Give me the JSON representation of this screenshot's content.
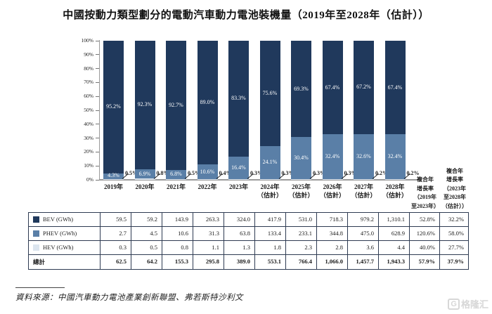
{
  "title": "中國按動力類型劃分的電動汽車動力電池裝機量（2019年至2028年（估計））",
  "chart_data": {
    "type": "stacked_bar_100pct",
    "title": "中國按動力類型劃分的電動汽車動力電池裝機量（2019年至2028年（估計））",
    "ylim": [
      0,
      100
    ],
    "grid": false,
    "y_ticks": [
      "100%",
      "90%",
      "80%",
      "70%",
      "60%",
      "50%",
      "40%",
      "30%",
      "20%",
      "10%",
      "0%"
    ],
    "categories": [
      "2019年",
      "2020年",
      "2021年",
      "2022年",
      "2023年",
      "2024年",
      "2025年",
      "2026年",
      "2027年",
      "2028年"
    ],
    "category_notes": [
      "",
      "",
      "",
      "",
      "",
      "（估計）",
      "（估計）",
      "（估計）",
      "（估計）",
      "（估計）"
    ],
    "series": [
      {
        "name": "BEV",
        "color": "#20395C",
        "values": [
          95.2,
          92.3,
          92.7,
          89.0,
          83.3,
          75.6,
          69.3,
          67.4,
          67.2,
          67.4
        ],
        "labels": [
          "95.2%",
          "92.3%",
          "92.7%",
          "89.0%",
          "83.3%",
          "75.6%",
          "69.3%",
          "67.4%",
          "67.2%",
          "67.4%"
        ]
      },
      {
        "name": "PHEV",
        "color": "#5A7FA7",
        "values": [
          4.3,
          6.9,
          6.8,
          10.6,
          16.4,
          24.1,
          30.4,
          32.4,
          32.6,
          32.4
        ],
        "labels": [
          "4.3%",
          "6.9%",
          "6.8%",
          "10.6%",
          "16.4%",
          "24.1%",
          "30.4%",
          "32.4%",
          "32.6%",
          "32.4%"
        ]
      },
      {
        "name": "HEV",
        "color": "#DCE5EF",
        "values": [
          0.5,
          0.8,
          0.5,
          0.4,
          0.3,
          0.3,
          0.3,
          0.3,
          0.2,
          0.2
        ],
        "labels": [
          "0.5%",
          "0.8%",
          "0.5%",
          "0.4%",
          "0.3%",
          "0.3%",
          "0.3%",
          "0.3%",
          "0.2%",
          "0.2%"
        ]
      }
    ]
  },
  "table": {
    "cagr_headers": [
      "複合年\n增長率\n（2019年\n至2023年）",
      "複合年\n增長率\n（2023年\n至2028年\n（估計））"
    ],
    "rows": [
      {
        "label": "BEV (GWh)",
        "swatch": "#20395C",
        "bold": false,
        "values": [
          "59.5",
          "59.2",
          "143.9",
          "263.3",
          "324.0",
          "417.9",
          "531.0",
          "718.3",
          "979.2",
          "1,310.1",
          "52.8%",
          "32.2%"
        ]
      },
      {
        "label": "PHEV (GWh)",
        "swatch": "#5A7FA7",
        "bold": false,
        "values": [
          "2.7",
          "4.5",
          "10.6",
          "31.3",
          "63.8",
          "133.4",
          "233.1",
          "344.8",
          "475.0",
          "628.9",
          "120.6%",
          "58.0%"
        ]
      },
      {
        "label": "HEV (GWh)",
        "swatch": "#DCE5EF",
        "bold": false,
        "values": [
          "0.3",
          "0.5",
          "0.8",
          "1.1",
          "1.3",
          "1.8",
          "2.3",
          "2.8",
          "3.6",
          "4.4",
          "40.0%",
          "27.7%"
        ]
      },
      {
        "label": "總計",
        "swatch": null,
        "bold": true,
        "values": [
          "62.5",
          "64.2",
          "155.3",
          "295.8",
          "389.0",
          "553.1",
          "766.4",
          "1,066.0",
          "1,457.7",
          "1,943.3",
          "57.9%",
          "37.9%"
        ]
      }
    ]
  },
  "source": "資料來源：中國汽車動力電池產業創新聯盟、弗若斯特沙利文",
  "watermark": {
    "badge": "G",
    "text": "格隆汇"
  }
}
